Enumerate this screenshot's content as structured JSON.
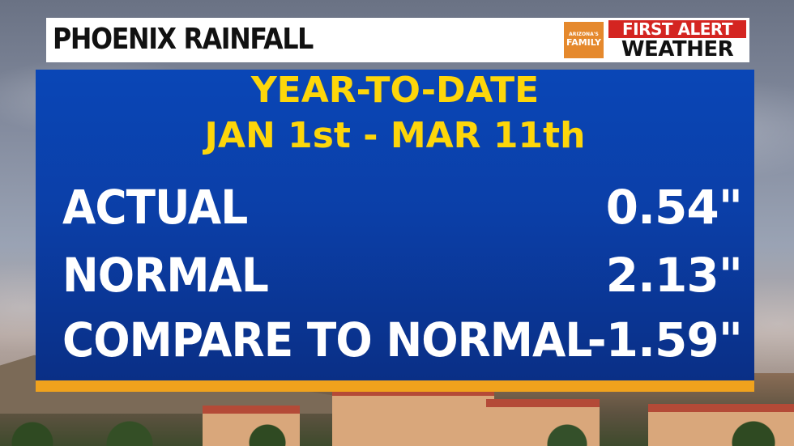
{
  "header": {
    "title": "PHOENIX RAINFALL",
    "logo": {
      "top": "ARIZONA'S",
      "bottom": "FAMILY"
    },
    "brand_line1": "FIRST ALERT",
    "brand_line2": "WEATHER"
  },
  "panel": {
    "subtitle_line1": "YEAR-TO-DATE",
    "subtitle_line2": "JAN 1st - MAR 11th",
    "rows": [
      {
        "label": "ACTUAL",
        "value": "0.54\""
      },
      {
        "label": "NORMAL",
        "value": "2.13\""
      },
      {
        "label": "COMPARE TO NORMAL",
        "value": "-1.59\""
      }
    ]
  },
  "colors": {
    "panel_blue": "#0a46b6",
    "subtitle_yellow": "#fdd60a",
    "stripe_orange": "#f0a21d",
    "brand_red": "#d42521",
    "logo_orange": "#e5892d"
  }
}
